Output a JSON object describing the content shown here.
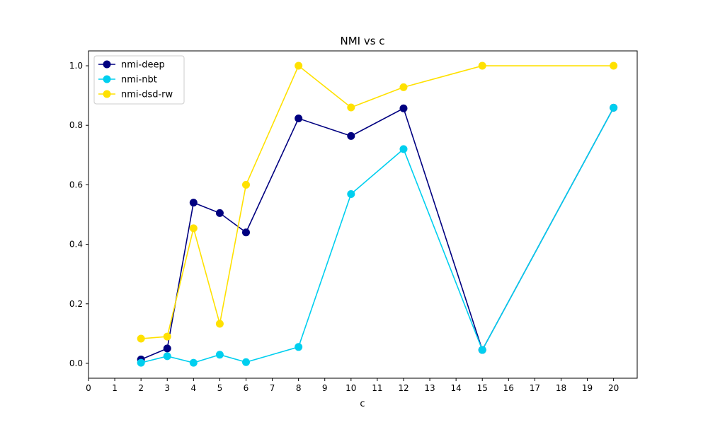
{
  "chart_data": {
    "type": "line",
    "title": "NMI vs c",
    "xlabel": "c",
    "ylabel": "",
    "xlim": [
      0,
      20.9
    ],
    "ylim": [
      -0.05,
      1.05
    ],
    "xticks": [
      0,
      1,
      2,
      3,
      4,
      5,
      6,
      7,
      8,
      9,
      10,
      11,
      12,
      13,
      14,
      15,
      16,
      17,
      18,
      19,
      20
    ],
    "yticks": [
      0.0,
      0.2,
      0.4,
      0.6,
      0.8,
      1.0
    ],
    "ytick_labels": [
      "0.0",
      "0.2",
      "0.4",
      "0.6",
      "0.8",
      "1.0"
    ],
    "grid": false,
    "legend_position": "top-left",
    "x": [
      2,
      3,
      4,
      5,
      6,
      8,
      10,
      12,
      15,
      20
    ],
    "series": [
      {
        "name": "nmi-deep",
        "color": "#000080",
        "marker": "circle",
        "values": [
          0.013,
          0.05,
          0.54,
          0.505,
          0.44,
          0.823,
          0.764,
          0.857,
          0.045,
          0.859
        ]
      },
      {
        "name": "nmi-nbt",
        "color": "#00cfef",
        "marker": "circle",
        "values": [
          0.002,
          0.024,
          0.002,
          0.029,
          0.004,
          0.055,
          0.569,
          0.72,
          0.045,
          0.859
        ]
      },
      {
        "name": "nmi-dsd-rw",
        "color": "#ffe100",
        "marker": "circle",
        "values": [
          0.083,
          0.09,
          0.454,
          0.133,
          0.6,
          1.0,
          0.86,
          0.928,
          1.0,
          1.0
        ]
      }
    ]
  }
}
